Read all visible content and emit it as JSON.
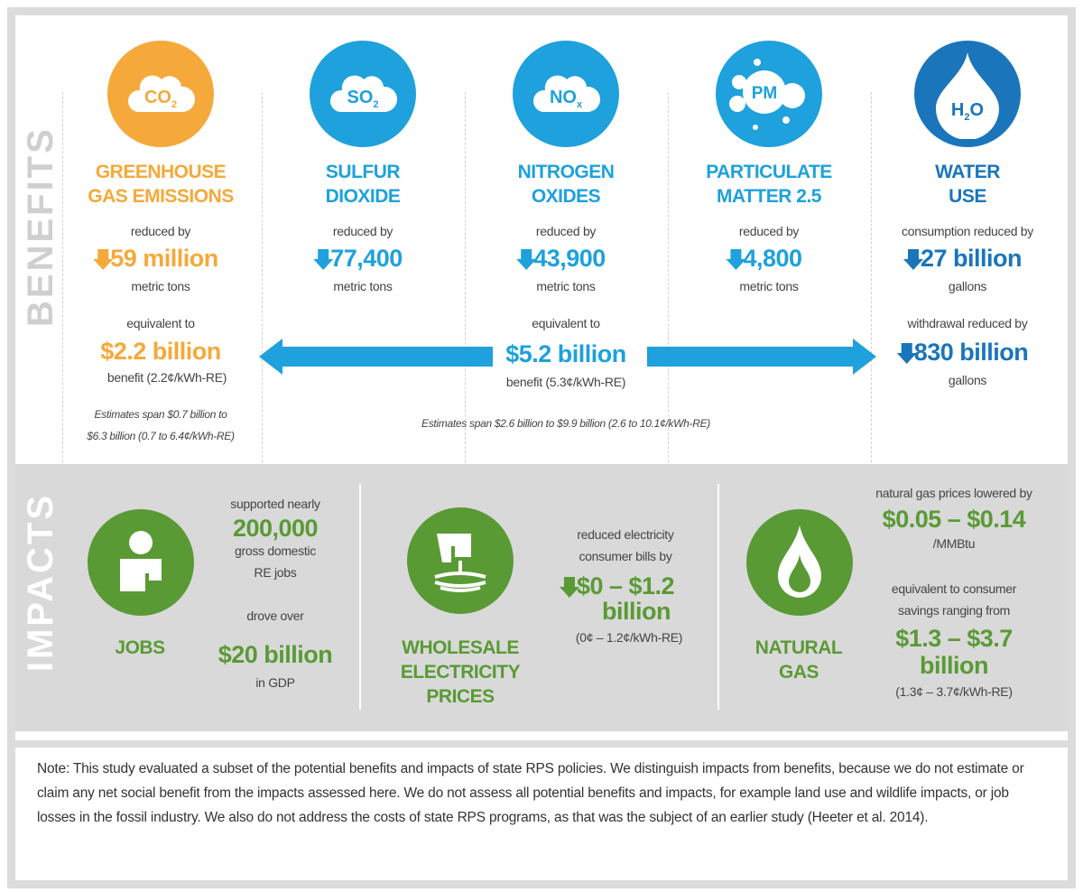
{
  "colors": {
    "orange": "#f5a93a",
    "blue": "#1ea1dc",
    "dark_blue": "#1a75bb",
    "green": "#5a9a35",
    "gray": "#d9d9d9"
  },
  "benefits": {
    "section_label": "BENEFITS",
    "columns": [
      {
        "icon": "co2-cloud-icon",
        "icon_label": "CO",
        "icon_sub": "2",
        "title": [
          "GREENHOUSE",
          "GAS EMISSIONS"
        ],
        "intro": "reduced by",
        "value": "59 million",
        "unit": "metric tons"
      },
      {
        "icon": "so2-cloud-icon",
        "icon_label": "SO",
        "icon_sub": "2",
        "title": [
          "SULFUR",
          "DIOXIDE"
        ],
        "intro": "reduced by",
        "value": "77,400",
        "unit": "metric tons"
      },
      {
        "icon": "nox-cloud-icon",
        "icon_label": "NO",
        "icon_sub": "x",
        "title": [
          "NITROGEN",
          "OXIDES"
        ],
        "intro": "reduced by",
        "value": "43,900",
        "unit": "metric tons"
      },
      {
        "icon": "pm-particles-icon",
        "icon_label": "PM",
        "icon_sub": "",
        "title": [
          "PARTICULATE",
          "MATTER 2.5"
        ],
        "intro": "reduced by",
        "value": "4,800",
        "unit": "metric tons"
      },
      {
        "icon": "water-drop-icon",
        "icon_label": "H",
        "icon_sub": "2",
        "icon_after": "O",
        "title": [
          "WATER",
          "USE"
        ],
        "intro": "consumption reduced by",
        "value": "27 billion",
        "unit": "gallons",
        "intro2": "withdrawal reduced by",
        "value2": "830 billion",
        "unit2": "gallons"
      }
    ],
    "ghg_equivalent": {
      "intro": "equivalent to",
      "value": "$2.2 billion",
      "benefit": "benefit (2.2¢/kWh-RE)",
      "estimates": [
        "Estimates span $0.7 billion to",
        "$6.3 billion (0.7 to 6.4¢/kWh-RE)"
      ]
    },
    "air_equivalent": {
      "intro": "equivalent to",
      "value": "$5.2 billion",
      "benefit": "benefit (5.3¢/kWh-RE)",
      "estimates": "Estimates span $2.6 billion to $9.9 billion (2.6 to 10.1¢/kWh-RE)"
    }
  },
  "impacts": {
    "section_label": "IMPACTS",
    "jobs": {
      "icon": "person-icon",
      "label": "JOBS",
      "line1": "supported nearly",
      "value1": "200,000",
      "line2": "gross domestic",
      "line3": "RE jobs",
      "line4": "drove over",
      "value2": "$20 billion",
      "line5": "in GDP"
    },
    "wholesale": {
      "icon": "hand-pressing-dollar-icon",
      "label": [
        "WHOLESALE",
        "ELECTRICITY",
        "PRICES"
      ],
      "line1": "reduced electricity",
      "line2": "consumer bills by",
      "value": "$0 – $1.2",
      "value_b": "billion",
      "note": "(0¢ – 1.2¢/kWh-RE)"
    },
    "gas": {
      "icon": "flame-icon",
      "label": [
        "NATURAL",
        "GAS"
      ],
      "line1": "natural gas prices lowered by",
      "value1": "$0.05 – $0.14",
      "unit1": "/MMBtu",
      "line2": "equivalent to consumer",
      "line3": "savings ranging from",
      "value2": "$1.3 – $3.7",
      "value2_b": "billion",
      "note": "(1.3¢ – 3.7¢/kWh-RE)"
    }
  },
  "note": "Note: This study evaluated a subset of the potential benefits and impacts of state RPS policies. We distinguish impacts from benefits, because we do not estimate or claim any net social benefit from the impacts assessed here.  We do not assess all potential benefits and impacts, for example land use and wildlife impacts, or job losses in the fossil industry. We also do not address the costs of state RPS programs, as that was the subject of an earlier study (Heeter et al. 2014)."
}
